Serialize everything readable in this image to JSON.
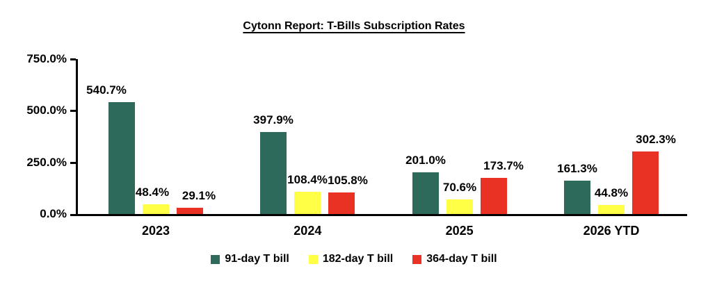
{
  "page": {
    "background": "#FFFFFF",
    "text_color": "#000000",
    "axis_color": "#000000"
  },
  "chart_data": {
    "type": "bar",
    "title": "Cytonn Report: T-Bills Subscription Rates",
    "categories": [
      "2023",
      "2024",
      "2025",
      "2026 YTD"
    ],
    "series": [
      {
        "name": "91-day T bill",
        "color": "#2D6A5B",
        "values": [
          540.7,
          397.9,
          201.0,
          161.3
        ]
      },
      {
        "name": "182-day T bill",
        "color": "#FFFF45",
        "values": [
          48.4,
          108.4,
          70.6,
          44.8
        ]
      },
      {
        "name": "364-day T bill",
        "color": "#E93223",
        "values": [
          29.1,
          105.8,
          173.7,
          302.3
        ]
      }
    ],
    "data_label_format": "0.0%",
    "y_axis": {
      "tick_labels": [
        "0.0%",
        "250.0%",
        "500.0%",
        "750.0%"
      ],
      "tick_values": [
        0,
        250,
        500,
        750
      ],
      "min": 0,
      "max": 750
    },
    "xlabel": "",
    "ylabel": "",
    "gridlines": false,
    "legend_position": "bottom",
    "label_dx": [
      [
        -22,
        0,
        0,
        0
      ],
      [
        -5,
        0,
        0,
        0
      ],
      [
        13,
        9,
        14,
        15
      ]
    ]
  }
}
